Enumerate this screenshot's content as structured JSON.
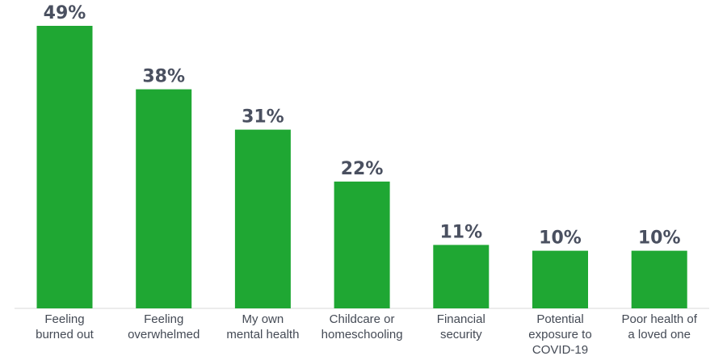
{
  "chart_data": {
    "type": "bar",
    "categories": [
      [
        "Feeling",
        "burned out"
      ],
      [
        "Feeling",
        "overwhelmed"
      ],
      [
        "My own",
        "mental health"
      ],
      [
        "Childcare or",
        "homeschooling"
      ],
      [
        "Financial",
        "security"
      ],
      [
        "Potential",
        "exposure to",
        "COVID-19"
      ],
      [
        "Poor health of",
        "a loved one"
      ]
    ],
    "values": [
      49,
      38,
      31,
      22,
      11,
      10,
      10
    ],
    "value_labels": [
      "49%",
      "38%",
      "31%",
      "22%",
      "11%",
      "10%",
      "10%"
    ],
    "ylim": [
      0,
      49
    ],
    "grid": false,
    "legend": "none",
    "colors": {
      "bar": "#1fa733",
      "value_text": "#4a5060",
      "category_text": "#444a55",
      "baseline": "#d8d8d8"
    }
  }
}
